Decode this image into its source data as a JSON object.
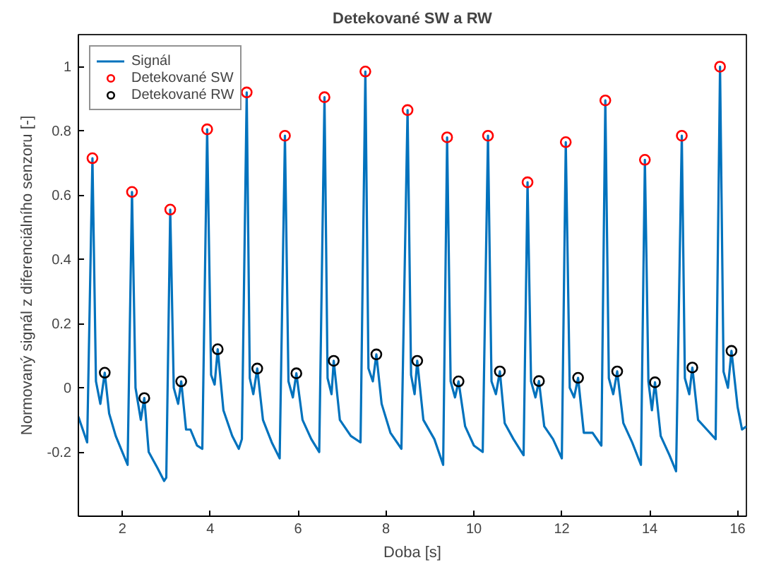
{
  "chart_data": {
    "type": "line",
    "title": "Detekované SW a RW",
    "xlabel": "Doba [s]",
    "ylabel": "Normovaný signál z diferenciálního senzoru [-]",
    "xlim": [
      1.0,
      16.2
    ],
    "ylim": [
      -0.4,
      1.1
    ],
    "xticks": [
      2,
      4,
      6,
      8,
      10,
      12,
      14,
      16
    ],
    "yticks": [
      -0.2,
      0,
      0.2,
      0.4,
      0.6,
      0.8,
      1
    ],
    "grid": false,
    "legend": "top left",
    "series": [
      {
        "name": "Signál",
        "color": "#0072bd",
        "marker": "none",
        "line_style": "solid",
        "x": [
          1.0,
          1.05,
          1.1,
          1.2,
          1.32,
          1.4,
          1.5,
          1.6,
          1.7,
          1.85,
          2.0,
          2.12,
          2.22,
          2.3,
          2.42,
          2.5,
          2.6,
          2.8,
          2.95,
          3.0,
          3.09,
          3.17,
          3.27,
          3.34,
          3.45,
          3.55,
          3.7,
          3.82,
          3.93,
          4.02,
          4.1,
          4.17,
          4.3,
          4.5,
          4.65,
          4.72,
          4.83,
          4.9,
          4.98,
          5.07,
          5.2,
          5.4,
          5.58,
          5.7,
          5.78,
          5.88,
          5.96,
          6.1,
          6.3,
          6.48,
          6.6,
          6.67,
          6.76,
          6.81,
          6.95,
          7.2,
          7.42,
          7.53,
          7.6,
          7.7,
          7.78,
          7.9,
          8.1,
          8.35,
          8.49,
          8.57,
          8.65,
          8.71,
          8.85,
          9.1,
          9.3,
          9.39,
          9.47,
          9.57,
          9.65,
          9.8,
          10.0,
          10.2,
          10.32,
          10.4,
          10.5,
          10.59,
          10.7,
          10.9,
          11.13,
          11.22,
          11.3,
          11.4,
          11.48,
          11.6,
          11.8,
          12.0,
          12.09,
          12.18,
          12.28,
          12.37,
          12.5,
          12.7,
          12.9,
          12.99,
          13.07,
          13.17,
          13.26,
          13.4,
          13.6,
          13.8,
          13.89,
          13.97,
          14.05,
          14.12,
          14.25,
          14.45,
          14.6,
          14.73,
          14.8,
          14.9,
          14.97,
          15.1,
          15.3,
          15.5,
          15.6,
          15.68,
          15.78,
          15.86,
          16.0,
          16.1,
          16.2
        ],
        "values": [
          -0.09,
          -0.11,
          -0.13,
          -0.17,
          0.715,
          0.02,
          -0.05,
          0.047,
          -0.08,
          -0.15,
          -0.2,
          -0.24,
          0.61,
          0.0,
          -0.1,
          -0.032,
          -0.2,
          -0.25,
          -0.29,
          -0.28,
          0.555,
          0.0,
          -0.05,
          0.02,
          -0.13,
          -0.13,
          -0.18,
          -0.19,
          0.805,
          0.04,
          0.01,
          0.12,
          -0.07,
          -0.15,
          -0.19,
          -0.16,
          0.92,
          0.03,
          -0.02,
          0.06,
          -0.1,
          -0.17,
          -0.22,
          0.785,
          0.02,
          -0.03,
          0.045,
          -0.1,
          -0.16,
          -0.2,
          0.905,
          0.03,
          -0.02,
          0.084,
          -0.1,
          -0.15,
          -0.17,
          0.985,
          0.06,
          0.02,
          0.104,
          -0.05,
          -0.14,
          -0.19,
          0.865,
          0.04,
          -0.02,
          0.084,
          -0.1,
          -0.16,
          -0.24,
          0.78,
          0.02,
          -0.03,
          0.02,
          -0.12,
          -0.18,
          -0.2,
          0.785,
          0.02,
          -0.02,
          0.051,
          -0.11,
          -0.16,
          -0.21,
          0.64,
          0.02,
          -0.03,
          0.021,
          -0.12,
          -0.16,
          -0.22,
          0.765,
          0.0,
          -0.03,
          0.031,
          -0.14,
          -0.14,
          -0.18,
          0.895,
          0.03,
          -0.02,
          0.051,
          -0.11,
          -0.17,
          -0.24,
          0.71,
          0.02,
          -0.07,
          0.017,
          -0.15,
          -0.21,
          -0.26,
          0.785,
          0.03,
          -0.02,
          0.063,
          -0.1,
          -0.13,
          -0.16,
          1.0,
          0.05,
          0.0,
          0.115,
          -0.06,
          -0.13,
          -0.12
        ]
      },
      {
        "name": "Detekované SW",
        "type": "scatter",
        "color": "#ff0000",
        "marker": "circle",
        "x": [
          1.32,
          2.22,
          3.09,
          3.93,
          4.83,
          5.7,
          6.6,
          7.53,
          8.49,
          9.39,
          10.32,
          11.22,
          12.09,
          12.99,
          13.89,
          14.73,
          15.6
        ],
        "values": [
          0.715,
          0.61,
          0.555,
          0.805,
          0.92,
          0.785,
          0.905,
          0.985,
          0.865,
          0.78,
          0.785,
          0.64,
          0.765,
          0.895,
          0.71,
          0.785,
          1.0
        ]
      },
      {
        "name": "Detekované RW",
        "type": "scatter",
        "color": "#000000",
        "marker": "circle",
        "x": [
          1.6,
          2.5,
          3.34,
          4.17,
          5.07,
          5.96,
          6.81,
          7.78,
          8.71,
          9.65,
          10.59,
          11.48,
          12.37,
          13.26,
          14.12,
          14.97,
          15.86
        ],
        "values": [
          0.047,
          -0.032,
          0.02,
          0.12,
          0.06,
          0.045,
          0.084,
          0.104,
          0.084,
          0.02,
          0.051,
          0.021,
          0.031,
          0.051,
          0.017,
          0.063,
          0.115
        ]
      }
    ]
  }
}
